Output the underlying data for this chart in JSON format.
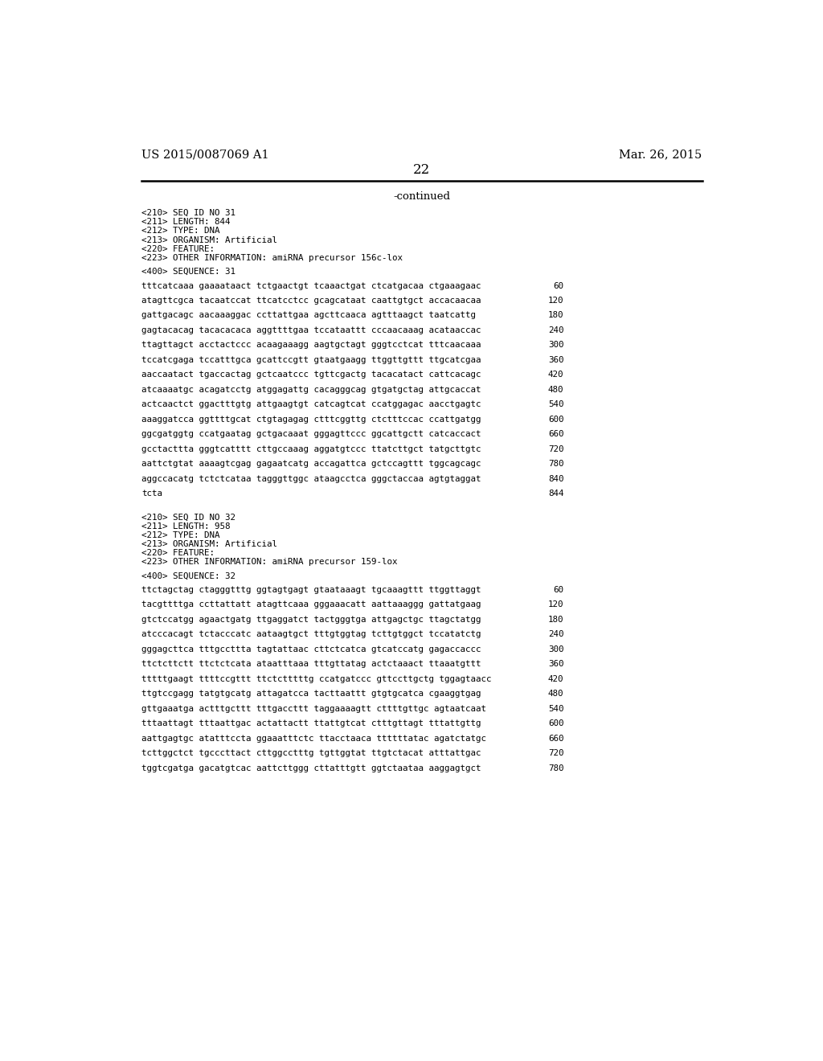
{
  "header_left": "US 2015/0087069 A1",
  "header_right": "Mar. 26, 2015",
  "page_number": "22",
  "continued_text": "-continued",
  "background_color": "#ffffff",
  "text_color": "#000000",
  "line_color": "#000000",
  "seq31_header": [
    "<210> SEQ ID NO 31",
    "<211> LENGTH: 844",
    "<212> TYPE: DNA",
    "<213> ORGANISM: Artificial",
    "<220> FEATURE:",
    "<223> OTHER INFORMATION: amiRNA precursor 156c-lox"
  ],
  "seq31_seq_label": "<400> SEQUENCE: 31",
  "seq31_sequences": [
    [
      "tttcatcaaa gaaaataact tctgaactgt tcaaactgat ctcatgacaa ctgaaagaac",
      "60"
    ],
    [
      "atagttcgca tacaatccat ttcatcctcc gcagcataat caattgtgct accacaacaa",
      "120"
    ],
    [
      "gattgacagc aacaaaggac ccttattgaa agcttcaaca agtttaagct taatcattg",
      "180"
    ],
    [
      "gagtacacag tacacacaca aggttttgaa tccataattt cccaacaaag acataaccac",
      "240"
    ],
    [
      "ttagttagct acctactccc acaagaaagg aagtgctagt gggtcctcat tttcaacaaa",
      "300"
    ],
    [
      "tccatcgaga tccatttgca gcattccgtt gtaatgaagg ttggttgttt ttgcatcgaa",
      "360"
    ],
    [
      "aaccaatact tgaccactag gctcaatccc tgttcgactg tacacatact cattcacagc",
      "420"
    ],
    [
      "atcaaaatgc acagatcctg atggagattg cacagggcag gtgatgctag attgcaccat",
      "480"
    ],
    [
      "actcaactct ggactttgtg attgaagtgt catcagtcat ccatggagac aacctgagtc",
      "540"
    ],
    [
      "aaaggatcca ggttttgcat ctgtagagag ctttcggttg ctctttccac ccattgatgg",
      "600"
    ],
    [
      "ggcgatggtg ccatgaatag gctgacaaat gggagttccc ggcattgctt catcaccact",
      "660"
    ],
    [
      "gcctacttta gggtcatttt cttgccaaag aggatgtccc ttatcttgct tatgcttgtc",
      "720"
    ],
    [
      "aattctgtat aaaagtcgag gagaatcatg accagattca gctccagttt tggcagcagc",
      "780"
    ],
    [
      "aggccacatg tctctcataa tagggttggc ataagcctca gggctaccaa agtgtaggat",
      "840"
    ],
    [
      "tcta",
      "844"
    ]
  ],
  "seq32_header": [
    "<210> SEQ ID NO 32",
    "<211> LENGTH: 958",
    "<212> TYPE: DNA",
    "<213> ORGANISM: Artificial",
    "<220> FEATURE:",
    "<223> OTHER INFORMATION: amiRNA precursor 159-lox"
  ],
  "seq32_seq_label": "<400> SEQUENCE: 32",
  "seq32_sequences": [
    [
      "ttctagctag ctagggtttg ggtagtgagt gtaataaagt tgcaaagttt ttggttaggt",
      "60"
    ],
    [
      "tacgttttga ccttattatt atagttcaaa gggaaacatt aattaaaggg gattatgaag",
      "120"
    ],
    [
      "gtctccatgg agaactgatg ttgaggatct tactgggtga attgagctgc ttagctatgg",
      "180"
    ],
    [
      "atcccacagt tctacccatc aataagtgct tttgtggtag tcttgtggct tccatatctg",
      "240"
    ],
    [
      "gggagcttca tttgccttta tagtattaac cttctcatca gtcatccatg gagaccaccc",
      "300"
    ],
    [
      "ttctcttctt ttctctcata ataatttaaa tttgttatag actctaaact ttaaatgttt",
      "360"
    ],
    [
      "tttttgaagt ttttccgttt ttctctttttg ccatgatccc gttccttgctg tggagtaacc",
      "420"
    ],
    [
      "ttgtccgagg tatgtgcatg attagatcca tacttaattt gtgtgcatca cgaaggtgag",
      "480"
    ],
    [
      "gttgaaatga actttgcttt tttgaccttt taggaaaagtt cttttgttgc agtaatcaat",
      "540"
    ],
    [
      "tttaattagt tttaattgac actattactt ttattgtcat ctttgttagt tttattgttg",
      "600"
    ],
    [
      "aattgagtgc atatttccta ggaaatttctc ttacctaaca ttttttatac agatctatgc",
      "660"
    ],
    [
      "tcttggctct tgcccttact cttggcctttg tgttggtat ttgtctacat atttattgac",
      "720"
    ],
    [
      "tggtcgatga gacatgtcac aattcttggg cttatttgtt ggtctaataa aaggagtgct",
      "780"
    ]
  ]
}
